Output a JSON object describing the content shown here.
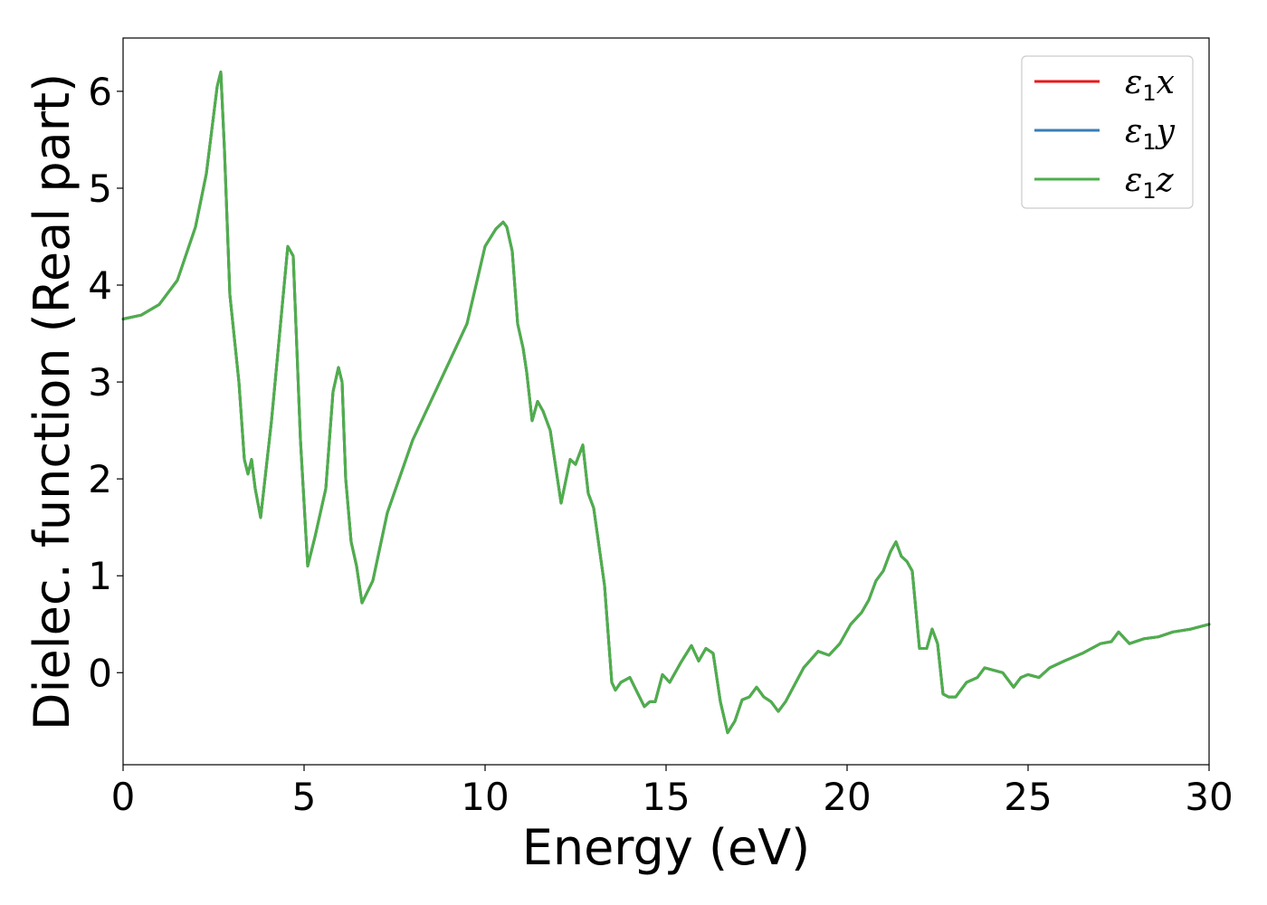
{
  "chart_data": {
    "type": "line",
    "title": "",
    "xlabel": "Energy (eV)",
    "ylabel": "Dielec. function (Real part)",
    "xlim": [
      0,
      30
    ],
    "ylim": [
      -0.95,
      6.55
    ],
    "xticks": [
      0,
      5,
      10,
      15,
      20,
      25,
      30
    ],
    "xtick_labels": [
      "0",
      "5",
      "10",
      "15",
      "20",
      "25",
      "30"
    ],
    "yticks": [
      0,
      1,
      2,
      3,
      4,
      5,
      6
    ],
    "ytick_labels": [
      "0",
      "1",
      "2",
      "3",
      "4",
      "5",
      "6"
    ],
    "grid": false,
    "legend_position": "top-right",
    "x": [
      0,
      0.5,
      1.0,
      1.5,
      2.0,
      2.3,
      2.6,
      2.7,
      2.8,
      2.95,
      3.2,
      3.35,
      3.45,
      3.55,
      3.65,
      3.8,
      4.1,
      4.4,
      4.55,
      4.7,
      4.9,
      5.1,
      5.3,
      5.6,
      5.8,
      5.95,
      6.05,
      6.15,
      6.3,
      6.45,
      6.6,
      6.9,
      7.3,
      8.0,
      9.0,
      9.5,
      10.0,
      10.3,
      10.5,
      10.6,
      10.75,
      10.9,
      11.05,
      11.15,
      11.3,
      11.45,
      11.6,
      11.8,
      12.1,
      12.35,
      12.5,
      12.7,
      12.85,
      13.0,
      13.3,
      13.5,
      13.6,
      13.75,
      14.0,
      14.2,
      14.4,
      14.55,
      14.7,
      14.9,
      15.1,
      15.4,
      15.7,
      15.9,
      16.1,
      16.3,
      16.5,
      16.7,
      16.9,
      17.1,
      17.3,
      17.5,
      17.7,
      17.9,
      18.1,
      18.3,
      18.8,
      19.2,
      19.5,
      19.8,
      20.1,
      20.4,
      20.6,
      20.8,
      21.0,
      21.2,
      21.35,
      21.5,
      21.65,
      21.8,
      22.0,
      22.2,
      22.35,
      22.5,
      22.65,
      22.8,
      23.0,
      23.3,
      23.6,
      23.8,
      24.0,
      24.3,
      24.6,
      24.8,
      25.0,
      25.3,
      25.6,
      26.0,
      26.5,
      27.0,
      27.3,
      27.5,
      27.8,
      28.2,
      28.6,
      29.0,
      29.5,
      30.0
    ],
    "series": [
      {
        "name": "x",
        "color": "#e41a1c",
        "values": [
          3.65,
          3.69,
          3.8,
          4.05,
          4.6,
          5.15,
          6.05,
          6.2,
          5.4,
          3.9,
          3.0,
          2.2,
          2.05,
          2.2,
          1.9,
          1.6,
          2.6,
          3.8,
          4.4,
          4.3,
          2.4,
          1.1,
          1.4,
          1.9,
          2.9,
          3.15,
          3.0,
          2.0,
          1.35,
          1.1,
          0.72,
          0.95,
          1.65,
          2.4,
          3.2,
          3.6,
          4.4,
          4.58,
          4.65,
          4.6,
          4.35,
          3.6,
          3.35,
          3.1,
          2.6,
          2.8,
          2.7,
          2.5,
          1.75,
          2.2,
          2.15,
          2.35,
          1.85,
          1.7,
          0.9,
          -0.1,
          -0.18,
          -0.1,
          -0.05,
          -0.2,
          -0.35,
          -0.3,
          -0.3,
          -0.02,
          -0.1,
          0.1,
          0.28,
          0.12,
          0.25,
          0.2,
          -0.3,
          -0.62,
          -0.5,
          -0.28,
          -0.25,
          -0.15,
          -0.25,
          -0.3,
          -0.4,
          -0.3,
          0.05,
          0.22,
          0.18,
          0.3,
          0.5,
          0.62,
          0.75,
          0.95,
          1.05,
          1.25,
          1.35,
          1.2,
          1.15,
          1.05,
          0.25,
          0.25,
          0.45,
          0.3,
          -0.22,
          -0.25,
          -0.25,
          -0.1,
          -0.05,
          0.05,
          0.03,
          0.0,
          -0.15,
          -0.05,
          -0.02,
          -0.05,
          0.05,
          0.12,
          0.2,
          0.3,
          0.32,
          0.42,
          0.3,
          0.35,
          0.37,
          0.42,
          0.45,
          0.5
        ]
      },
      {
        "name": "y",
        "color": "#377eb8",
        "values": [
          3.65,
          3.69,
          3.8,
          4.05,
          4.6,
          5.15,
          6.05,
          6.2,
          5.4,
          3.9,
          3.0,
          2.2,
          2.05,
          2.2,
          1.9,
          1.6,
          2.6,
          3.8,
          4.4,
          4.3,
          2.4,
          1.1,
          1.4,
          1.9,
          2.9,
          3.15,
          3.0,
          2.0,
          1.35,
          1.1,
          0.72,
          0.95,
          1.65,
          2.4,
          3.2,
          3.6,
          4.4,
          4.58,
          4.65,
          4.6,
          4.35,
          3.6,
          3.35,
          3.1,
          2.6,
          2.8,
          2.7,
          2.5,
          1.75,
          2.2,
          2.15,
          2.35,
          1.85,
          1.7,
          0.9,
          -0.1,
          -0.18,
          -0.1,
          -0.05,
          -0.2,
          -0.35,
          -0.3,
          -0.3,
          -0.02,
          -0.1,
          0.1,
          0.28,
          0.12,
          0.25,
          0.2,
          -0.3,
          -0.62,
          -0.5,
          -0.28,
          -0.25,
          -0.15,
          -0.25,
          -0.3,
          -0.4,
          -0.3,
          0.05,
          0.22,
          0.18,
          0.3,
          0.5,
          0.62,
          0.75,
          0.95,
          1.05,
          1.25,
          1.35,
          1.2,
          1.15,
          1.05,
          0.25,
          0.25,
          0.45,
          0.3,
          -0.22,
          -0.25,
          -0.25,
          -0.1,
          -0.05,
          0.05,
          0.03,
          0.0,
          -0.15,
          -0.05,
          -0.02,
          -0.05,
          0.05,
          0.12,
          0.2,
          0.3,
          0.32,
          0.42,
          0.3,
          0.35,
          0.37,
          0.42,
          0.45,
          0.5
        ]
      },
      {
        "name": "z",
        "color": "#4daf4a",
        "values": [
          3.65,
          3.69,
          3.8,
          4.05,
          4.6,
          5.15,
          6.05,
          6.2,
          5.4,
          3.9,
          3.0,
          2.2,
          2.05,
          2.2,
          1.9,
          1.6,
          2.6,
          3.8,
          4.4,
          4.3,
          2.4,
          1.1,
          1.4,
          1.9,
          2.9,
          3.15,
          3.0,
          2.0,
          1.35,
          1.1,
          0.72,
          0.95,
          1.65,
          2.4,
          3.2,
          3.6,
          4.4,
          4.58,
          4.65,
          4.6,
          4.35,
          3.6,
          3.35,
          3.1,
          2.6,
          2.8,
          2.7,
          2.5,
          1.75,
          2.2,
          2.15,
          2.35,
          1.85,
          1.7,
          0.9,
          -0.1,
          -0.18,
          -0.1,
          -0.05,
          -0.2,
          -0.35,
          -0.3,
          -0.3,
          -0.02,
          -0.1,
          0.1,
          0.28,
          0.12,
          0.25,
          0.2,
          -0.3,
          -0.62,
          -0.5,
          -0.28,
          -0.25,
          -0.15,
          -0.25,
          -0.3,
          -0.4,
          -0.3,
          0.05,
          0.22,
          0.18,
          0.3,
          0.5,
          0.62,
          0.75,
          0.95,
          1.05,
          1.25,
          1.35,
          1.2,
          1.15,
          1.05,
          0.25,
          0.25,
          0.45,
          0.3,
          -0.22,
          -0.25,
          -0.25,
          -0.1,
          -0.05,
          0.05,
          0.03,
          0.0,
          -0.15,
          -0.05,
          -0.02,
          -0.05,
          0.05,
          0.12,
          0.2,
          0.3,
          0.32,
          0.42,
          0.3,
          0.35,
          0.37,
          0.42,
          0.45,
          0.5
        ]
      }
    ],
    "legend": [
      {
        "symbol": "ε",
        "subscript": "1",
        "axis": "x",
        "color": "#e41a1c"
      },
      {
        "symbol": "ε",
        "subscript": "1",
        "axis": "y",
        "color": "#377eb8"
      },
      {
        "symbol": "ε",
        "subscript": "1",
        "axis": "z",
        "color": "#4daf4a"
      }
    ]
  }
}
